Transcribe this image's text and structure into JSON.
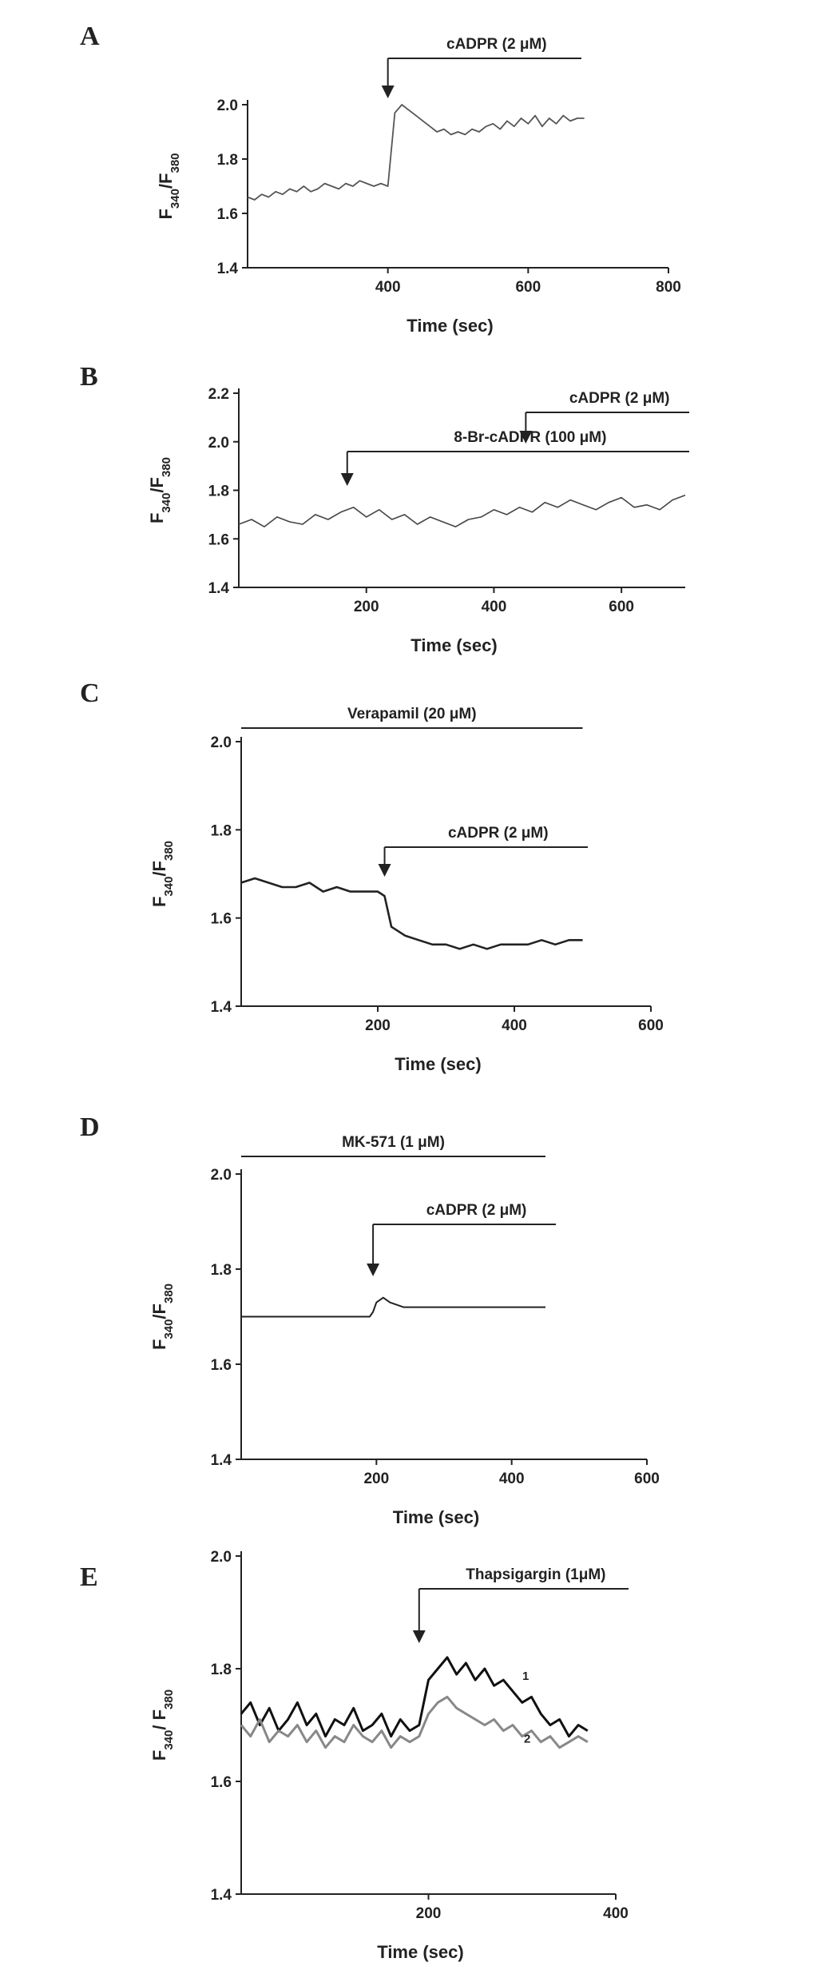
{
  "chart_data": [
    {
      "type": "line",
      "panel": "A",
      "xlabel": "Time (sec)",
      "ylabel": [
        "F",
        "340",
        "/F",
        "380"
      ],
      "xlim": [
        200,
        800
      ],
      "xticks": [
        400,
        600,
        800
      ],
      "ylim": [
        1.4,
        2.0
      ],
      "yticks": [
        1.4,
        1.6,
        1.8,
        {
          "value": 2,
          "label": "2.0"
        }
      ],
      "annotations": [
        {
          "text": "cADPR (2 μM)",
          "x": 400
        }
      ],
      "x": [
        200,
        210,
        220,
        230,
        240,
        250,
        260,
        270,
        280,
        290,
        300,
        310,
        320,
        330,
        340,
        350,
        360,
        370,
        380,
        390,
        400,
        410,
        420,
        430,
        440,
        450,
        460,
        470,
        480,
        490,
        500,
        510,
        520,
        530,
        540,
        550,
        560,
        570,
        580,
        590,
        600,
        610,
        620,
        630,
        640,
        650,
        660,
        670,
        680
      ],
      "series": [
        {
          "color": "#555555",
          "values": [
            1.66,
            1.65,
            1.67,
            1.66,
            1.68,
            1.67,
            1.69,
            1.68,
            1.7,
            1.68,
            1.69,
            1.71,
            1.7,
            1.69,
            1.71,
            1.7,
            1.72,
            1.71,
            1.7,
            1.71,
            1.7,
            1.97,
            2.0,
            1.98,
            1.96,
            1.94,
            1.92,
            1.9,
            1.91,
            1.89,
            1.9,
            1.89,
            1.91,
            1.9,
            1.92,
            1.93,
            1.91,
            1.94,
            1.92,
            1.95,
            1.93,
            1.96,
            1.92,
            1.95,
            1.93,
            1.96,
            1.94,
            1.95,
            1.95
          ]
        }
      ]
    },
    {
      "type": "line",
      "panel": "B",
      "xlabel": "Time (sec)",
      "ylabel": [
        "F",
        "340",
        "/F",
        "380"
      ],
      "xlim": [
        0,
        700
      ],
      "xticks": [
        200,
        400,
        600
      ],
      "ylim": [
        1.4,
        2.2
      ],
      "yticks": [
        1.4,
        1.6,
        1.8,
        {
          "value": 2,
          "label": "2.0"
        },
        2.2
      ],
      "annotations": [
        {
          "text": "8-Br-cADPR (100 μM)",
          "x": 170
        },
        {
          "text": "cADPR (2 μM)",
          "x": 450
        }
      ],
      "x": [
        0,
        20,
        40,
        60,
        80,
        100,
        120,
        140,
        160,
        180,
        200,
        220,
        240,
        260,
        280,
        300,
        320,
        340,
        360,
        380,
        400,
        420,
        440,
        460,
        480,
        500,
        520,
        540,
        560,
        580,
        600,
        620,
        640,
        660,
        680,
        700
      ],
      "series": [
        {
          "color": "#444444",
          "values": [
            1.66,
            1.68,
            1.65,
            1.69,
            1.67,
            1.66,
            1.7,
            1.68,
            1.71,
            1.73,
            1.69,
            1.72,
            1.68,
            1.7,
            1.66,
            1.69,
            1.67,
            1.65,
            1.68,
            1.69,
            1.72,
            1.7,
            1.73,
            1.71,
            1.75,
            1.73,
            1.76,
            1.74,
            1.72,
            1.75,
            1.77,
            1.73,
            1.74,
            1.72,
            1.76,
            1.78
          ]
        }
      ]
    },
    {
      "type": "line",
      "panel": "C",
      "xlabel": "Time (sec)",
      "ylabel": [
        "F",
        "340",
        "/F",
        "380"
      ],
      "xlim": [
        0,
        600
      ],
      "xticks": [
        200,
        400,
        600
      ],
      "ylim": [
        1.4,
        2.0
      ],
      "yticks": [
        1.4,
        1.6,
        1.8,
        {
          "value": 2,
          "label": "2.0"
        }
      ],
      "annotations": [
        {
          "text": "Verapamil (20 μM)"
        },
        {
          "text": "cADPR (2 μM)",
          "x": 210
        }
      ],
      "x": [
        0,
        20,
        40,
        60,
        80,
        100,
        120,
        140,
        160,
        180,
        200,
        210,
        220,
        240,
        260,
        280,
        300,
        320,
        340,
        360,
        380,
        400,
        420,
        440,
        460,
        480,
        500
      ],
      "series": [
        {
          "color": "#222222",
          "values": [
            1.68,
            1.69,
            1.68,
            1.67,
            1.67,
            1.68,
            1.66,
            1.67,
            1.66,
            1.66,
            1.66,
            1.65,
            1.58,
            1.56,
            1.55,
            1.54,
            1.54,
            1.53,
            1.54,
            1.53,
            1.54,
            1.54,
            1.54,
            1.55,
            1.54,
            1.55,
            1.55
          ]
        }
      ]
    },
    {
      "type": "line",
      "panel": "D",
      "xlabel": "Time (sec)",
      "ylabel": [
        "F",
        "340",
        "/F",
        "380"
      ],
      "xlim": [
        0,
        600
      ],
      "xticks": [
        200,
        400,
        600
      ],
      "ylim": [
        1.4,
        2.0
      ],
      "yticks": [
        1.4,
        1.6,
        1.8,
        {
          "value": 2,
          "label": "2.0"
        }
      ],
      "annotations": [
        {
          "text": "MK-571 (1 μM)"
        },
        {
          "text": "cADPR (2 μM)",
          "x": 195
        }
      ],
      "x": [
        0,
        50,
        100,
        150,
        190,
        195,
        200,
        210,
        220,
        240,
        260,
        300,
        350,
        400,
        450
      ],
      "series": [
        {
          "color": "#222222",
          "values": [
            1.7,
            1.7,
            1.7,
            1.7,
            1.7,
            1.71,
            1.73,
            1.74,
            1.73,
            1.72,
            1.72,
            1.72,
            1.72,
            1.72,
            1.72
          ]
        }
      ]
    },
    {
      "type": "line",
      "panel": "E",
      "xlabel": "Time (sec)",
      "ylabel": [
        "F",
        "340",
        "/ F",
        "380"
      ],
      "xlim": [
        0,
        400
      ],
      "xticks": [
        200,
        400
      ],
      "ylim": [
        1.4,
        2.0
      ],
      "yticks": [
        1.4,
        1.6,
        1.8,
        {
          "value": 2,
          "label": "2.0"
        }
      ],
      "annotations": [
        {
          "text": "Thapsigargin (1μM)",
          "x": 190
        }
      ],
      "x": [
        0,
        10,
        20,
        30,
        40,
        50,
        60,
        70,
        80,
        90,
        100,
        110,
        120,
        130,
        140,
        150,
        160,
        170,
        180,
        190,
        200,
        210,
        220,
        230,
        240,
        250,
        260,
        270,
        280,
        290,
        300,
        310,
        320,
        330,
        340,
        350,
        360,
        370
      ],
      "series": [
        {
          "name": "1",
          "color": "#111111",
          "values": [
            1.72,
            1.74,
            1.7,
            1.73,
            1.69,
            1.71,
            1.74,
            1.7,
            1.72,
            1.68,
            1.71,
            1.7,
            1.73,
            1.69,
            1.7,
            1.72,
            1.68,
            1.71,
            1.69,
            1.7,
            1.78,
            1.8,
            1.82,
            1.79,
            1.81,
            1.78,
            1.8,
            1.77,
            1.78,
            1.76,
            1.74,
            1.75,
            1.72,
            1.7,
            1.71,
            1.68,
            1.7,
            1.69
          ]
        },
        {
          "name": "2",
          "color": "#888888",
          "values": [
            1.7,
            1.68,
            1.71,
            1.67,
            1.69,
            1.68,
            1.7,
            1.67,
            1.69,
            1.66,
            1.68,
            1.67,
            1.7,
            1.68,
            1.67,
            1.69,
            1.66,
            1.68,
            1.67,
            1.68,
            1.72,
            1.74,
            1.75,
            1.73,
            1.72,
            1.71,
            1.7,
            1.71,
            1.69,
            1.7,
            1.68,
            1.69,
            1.67,
            1.68,
            1.66,
            1.67,
            1.68,
            1.67
          ]
        }
      ]
    }
  ]
}
